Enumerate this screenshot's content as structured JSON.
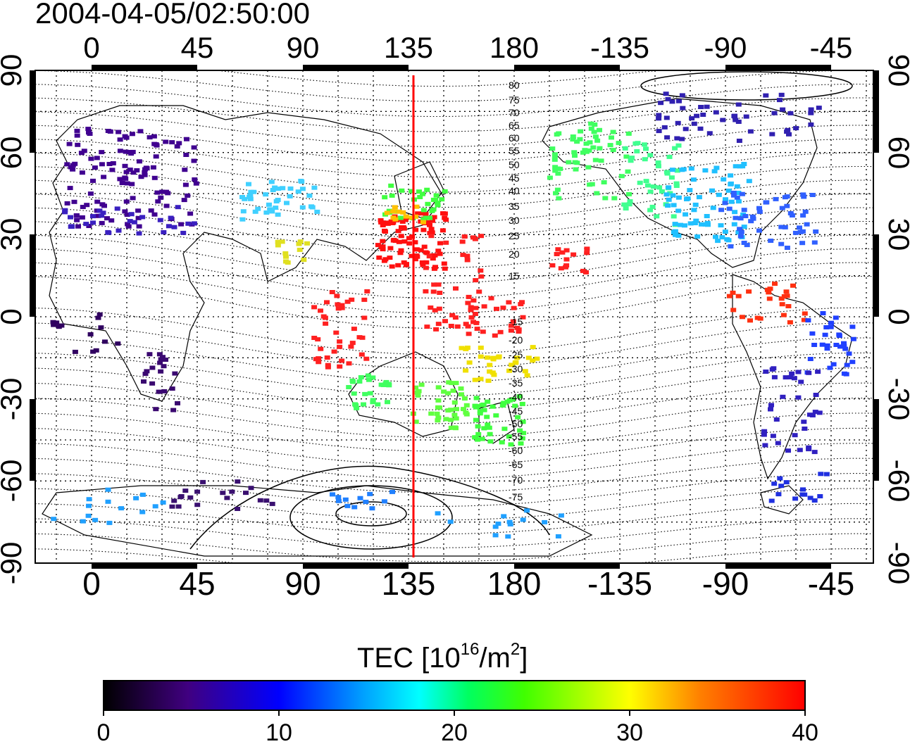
{
  "title": "2004-04-05/02:50:00",
  "x_tick_labels": [
    "0",
    "45",
    "90",
    "135",
    "180",
    "-135",
    "-90",
    "-45"
  ],
  "y_tick_labels": [
    "90",
    "60",
    "30",
    "0",
    "-30",
    "-60",
    "-90"
  ],
  "contour_labels": [
    "80",
    "75",
    "70",
    "65",
    "60",
    "55",
    "50",
    "45",
    "40",
    "35",
    "30",
    "25",
    "20",
    "15",
    "-15",
    "-20",
    "-25",
    "-30",
    "-35",
    "-40",
    "-45",
    "-50",
    "-55",
    "-60",
    "-65",
    "-70",
    "-75"
  ],
  "colorbar": {
    "label_main": "TEC  [10",
    "label_exp1": "16",
    "label_mid": "/m",
    "label_exp2": "2",
    "label_end": "]",
    "tick_labels": [
      "0",
      "10",
      "20",
      "30",
      "40"
    ],
    "min": 0,
    "max": 40
  },
  "terminator_longitude": 137,
  "colors": {
    "terminator": "#ff0000",
    "frame": "#000000",
    "background": "#ffffff"
  }
}
